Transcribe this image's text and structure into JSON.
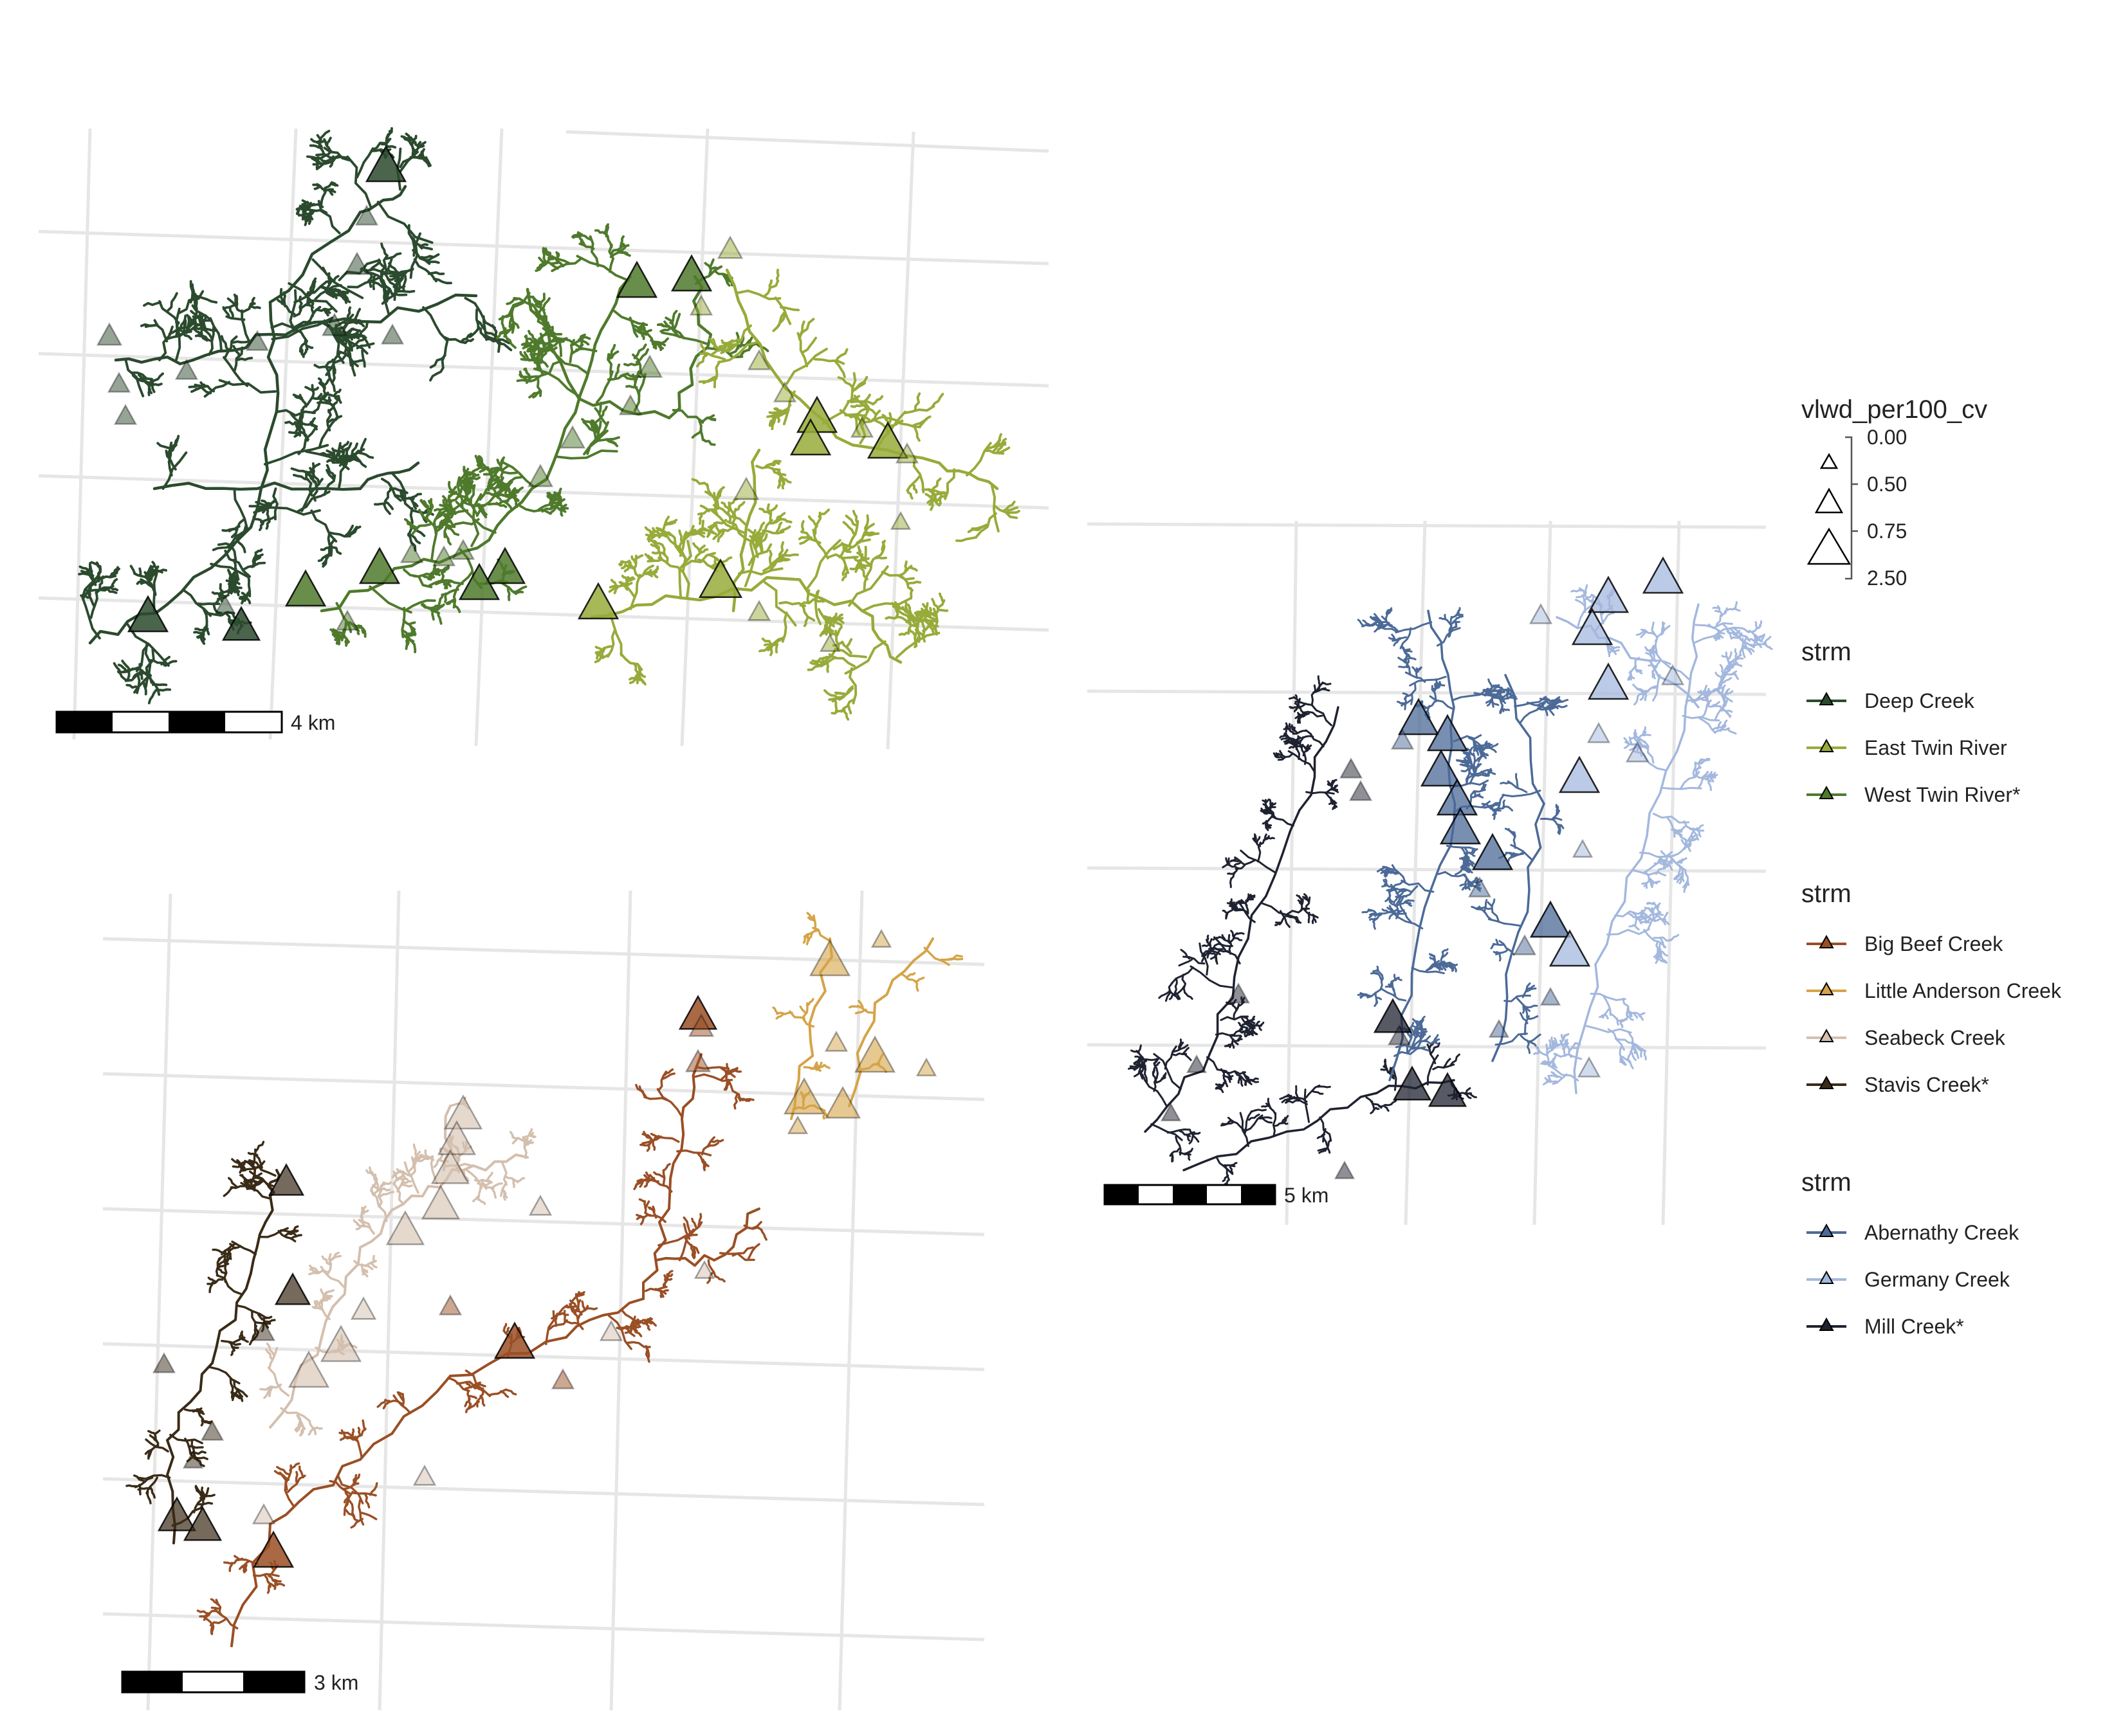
{
  "panels": {
    "twin": {
      "scale_label": "4 km"
    },
    "kitsap": {
      "scale_label": "3 km"
    },
    "cowlitz": {
      "scale_label": "5 km"
    }
  },
  "size_legend": {
    "title": "vlwd_per100_cv",
    "labels": [
      "0.00",
      "0.50",
      "0.75",
      "2.50"
    ]
  },
  "stream_legends": [
    {
      "title": "strm",
      "items": [
        {
          "label": "Deep Creek",
          "color": "#2b4a2e"
        },
        {
          "label": "East Twin River",
          "color": "#97ab3a"
        },
        {
          "label": "West Twin River*",
          "color": "#4f7a2c"
        }
      ]
    },
    {
      "title": "strm",
      "items": [
        {
          "label": "Big Beef Creek",
          "color": "#9a4f25"
        },
        {
          "label": "Little Anderson Creek",
          "color": "#d5a448"
        },
        {
          "label": "Seabeck Creek",
          "color": "#d4bfae"
        },
        {
          "label": "Stavis Creek*",
          "color": "#3a2b17"
        }
      ]
    },
    {
      "title": "strm",
      "items": [
        {
          "label": "Abernathy Creek",
          "color": "#4c6a98"
        },
        {
          "label": "Germany Creek",
          "color": "#a4b8de"
        },
        {
          "label": "Mill Creek*",
          "color": "#1f2230"
        }
      ]
    }
  ]
}
